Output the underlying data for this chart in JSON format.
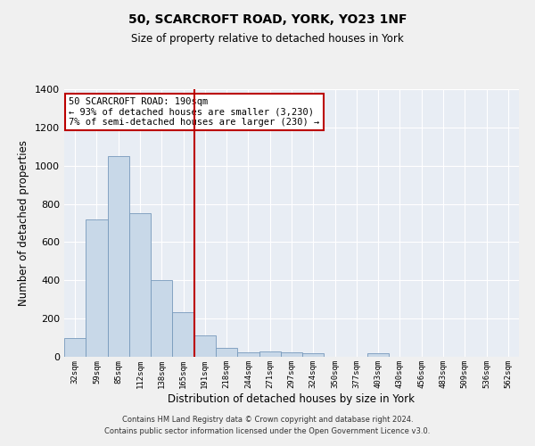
{
  "title1": "50, SCARCROFT ROAD, YORK, YO23 1NF",
  "title2": "Size of property relative to detached houses in York",
  "xlabel": "Distribution of detached houses by size in York",
  "ylabel": "Number of detached properties",
  "categories": [
    "32sqm",
    "59sqm",
    "85sqm",
    "112sqm",
    "138sqm",
    "165sqm",
    "191sqm",
    "218sqm",
    "244sqm",
    "271sqm",
    "297sqm",
    "324sqm",
    "350sqm",
    "377sqm",
    "403sqm",
    "430sqm",
    "456sqm",
    "483sqm",
    "509sqm",
    "536sqm",
    "562sqm"
  ],
  "values": [
    100,
    720,
    1050,
    750,
    400,
    235,
    110,
    45,
    25,
    30,
    25,
    20,
    0,
    0,
    20,
    0,
    0,
    0,
    0,
    0,
    0
  ],
  "bar_color": "#c8d8e8",
  "bar_edge_color": "#7799bb",
  "bg_color": "#e8edf4",
  "grid_color": "#ffffff",
  "vline_color": "#bb0000",
  "annotation_text": "50 SCARCROFT ROAD: 190sqm\n← 93% of detached houses are smaller (3,230)\n7% of semi-detached houses are larger (230) →",
  "annotation_box_color": "#bb0000",
  "ylim": [
    0,
    1400
  ],
  "yticks": [
    0,
    200,
    400,
    600,
    800,
    1000,
    1200,
    1400
  ],
  "footer1": "Contains HM Land Registry data © Crown copyright and database right 2024.",
  "footer2": "Contains public sector information licensed under the Open Government Licence v3.0."
}
